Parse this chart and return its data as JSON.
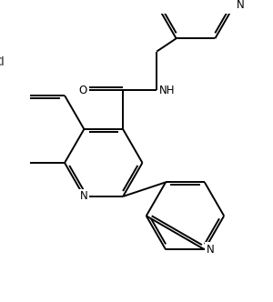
{
  "bg_color": "#ffffff",
  "line_color": "#000000",
  "line_width": 1.4,
  "font_size": 8.5,
  "figsize": [
    3.0,
    3.32
  ],
  "dpi": 100,
  "xlim": [
    -2.2,
    3.8
  ],
  "ylim": [
    -4.2,
    3.2
  ]
}
